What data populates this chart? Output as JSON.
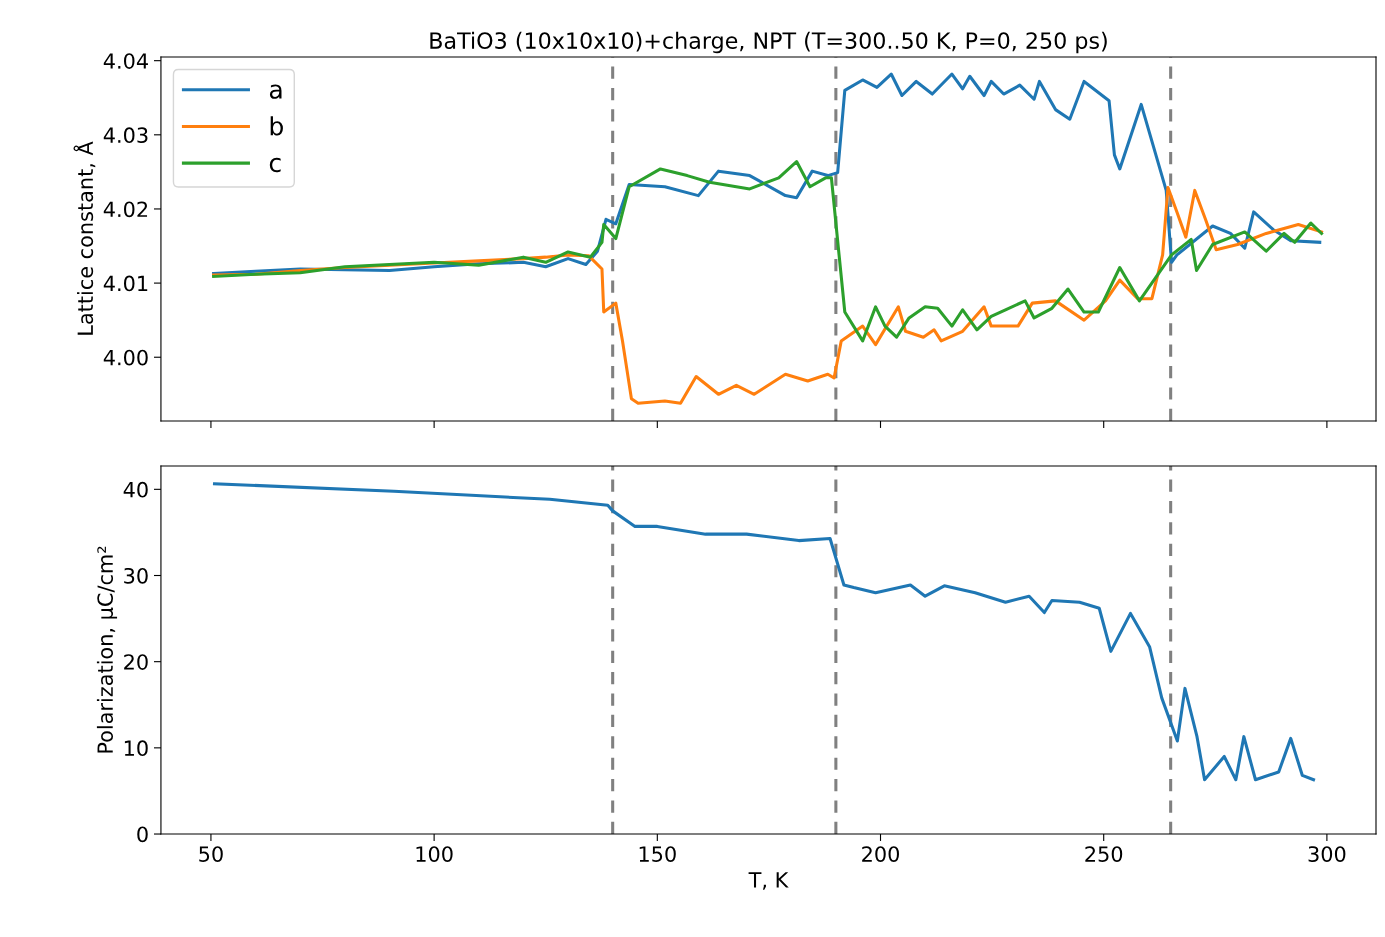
{
  "chart_data": [
    {
      "type": "line",
      "title": "BaTiO3 (10x10x10)+charge, NPT (T=300..50 K, P=0, 250 ps)",
      "ylabel": "Lattice constant, Å",
      "xlim": [
        38.8,
        311
      ],
      "xticks": [
        50,
        100,
        150,
        200,
        250,
        300
      ],
      "ylim": [
        3.9914,
        4.0405
      ],
      "yticks": [
        {
          "value": 4.0,
          "label": "4.00"
        },
        {
          "value": 4.01,
          "label": "4.01"
        },
        {
          "value": 4.02,
          "label": "4.02"
        },
        {
          "value": 4.03,
          "label": "4.03"
        },
        {
          "value": 4.04,
          "label": "4.04"
        }
      ],
      "tick_labels": "y",
      "legend": "top left",
      "grid": false,
      "line_style": "solid",
      "ref_lines": [
        {
          "axis": "x",
          "value": 140,
          "color": "#808080",
          "line_style": "dashed"
        },
        {
          "axis": "x",
          "value": 190,
          "color": "#808080",
          "line_style": "dashed"
        },
        {
          "axis": "x",
          "value": 265,
          "color": "#808080",
          "line_style": "dashed"
        }
      ],
      "series": [
        {
          "name": "a",
          "color": "#1f77b4",
          "x": [
            50.6,
            60,
            70,
            80,
            90,
            100,
            110,
            120,
            125,
            130,
            134,
            136.6,
            138.5,
            140.7,
            143.7,
            151.7,
            159.2,
            163.7,
            170.7,
            178.7,
            181.2,
            184.7,
            188.2,
            190.4,
            192,
            196,
            199.2,
            202.4,
            204.8,
            208,
            211.6,
            216,
            218.4,
            220,
            223.2,
            224.8,
            227.6,
            231.2,
            234.4,
            235.6,
            239.2,
            242.4,
            245.6,
            251.2,
            252.4,
            253.6,
            258.4,
            264,
            265.2,
            266.4,
            274.4,
            278.4,
            281.6,
            283.6,
            288,
            292,
            298.4
          ],
          "values": [
            4.0113,
            4.0116,
            4.0119,
            4.0118,
            4.0117,
            4.0122,
            4.0126,
            4.0128,
            4.0122,
            4.0133,
            4.0125,
            4.0143,
            4.0186,
            4.018,
            4.0233,
            4.023,
            4.0218,
            4.0251,
            4.0245,
            4.0218,
            4.0215,
            4.0251,
            4.0245,
            4.0249,
            4.036,
            4.0374,
            4.0364,
            4.0382,
            4.0353,
            4.0372,
            4.0355,
            4.0382,
            4.0362,
            4.0379,
            4.0353,
            4.0372,
            4.0355,
            4.0367,
            4.0348,
            4.0372,
            4.0334,
            4.0321,
            4.0372,
            4.0346,
            4.0273,
            4.0254,
            4.0341,
            4.0225,
            4.0128,
            4.0138,
            4.0177,
            4.0167,
            4.0147,
            4.0196,
            4.0172,
            4.0157,
            4.0155
          ]
        },
        {
          "name": "b",
          "color": "#ff7f0e",
          "x": [
            50.6,
            60,
            70,
            80,
            90,
            100,
            110,
            120,
            125,
            130,
            134.6,
            137.6,
            138,
            140.7,
            142.2,
            144.2,
            145.7,
            151.7,
            155.2,
            158.7,
            163.7,
            167.7,
            171.7,
            178.7,
            183.7,
            188.2,
            189.6,
            191.2,
            196,
            198.9,
            204,
            205.6,
            209.6,
            212,
            213.6,
            218.4,
            223.2,
            224.8,
            230.8,
            234,
            239.2,
            245.6,
            250.4,
            253.6,
            257.6,
            260.8,
            263.2,
            264.4,
            266.4,
            268.4,
            270.4,
            272.8,
            275.2,
            280,
            286.4,
            293.6,
            298.8
          ],
          "values": [
            4.0111,
            4.0112,
            4.0117,
            4.0121,
            4.0124,
            4.0127,
            4.013,
            4.0133,
            4.0135,
            4.0138,
            4.0137,
            4.0119,
            4.0061,
            4.0073,
            4.0022,
            3.9944,
            3.9938,
            3.9941,
            3.9938,
            3.9974,
            3.995,
            3.9962,
            3.995,
            3.9977,
            3.9968,
            3.9977,
            3.9972,
            4.0022,
            4.0042,
            4.0017,
            4.0068,
            4.0035,
            4.0027,
            4.0037,
            4.0022,
            4.0035,
            4.0068,
            4.0042,
            4.0042,
            4.0073,
            4.0076,
            4.005,
            4.0076,
            4.0104,
            4.0079,
            4.0079,
            4.0138,
            4.0229,
            4.0196,
            4.0162,
            4.0225,
            4.0186,
            4.0145,
            4.0152,
            4.0167,
            4.0179,
            4.0169
          ]
        },
        {
          "name": "c",
          "color": "#2ca02c",
          "x": [
            50.6,
            60,
            70,
            80,
            90,
            100,
            110,
            120,
            125,
            130,
            135,
            137.6,
            138,
            140.7,
            143.7,
            150.7,
            156.7,
            161.7,
            170.7,
            177.2,
            181.2,
            184.2,
            187.7,
            189,
            190.4,
            192,
            196,
            198.9,
            201,
            203.6,
            206.4,
            210,
            212.8,
            216,
            218.4,
            221.6,
            224.8,
            228,
            232.4,
            234.4,
            238.4,
            242,
            245.6,
            248.8,
            253.6,
            258,
            261.6,
            265.2,
            269.6,
            270.8,
            274.4,
            281.6,
            286.4,
            290.4,
            292.8,
            296.4,
            298.8
          ],
          "values": [
            4.0109,
            4.0112,
            4.0114,
            4.0122,
            4.0125,
            4.0128,
            4.0124,
            4.0135,
            4.0128,
            4.0142,
            4.0135,
            4.0155,
            4.0179,
            4.016,
            4.023,
            4.0254,
            4.0245,
            4.0236,
            4.0227,
            4.0242,
            4.0264,
            4.023,
            4.0242,
            4.0242,
            4.0157,
            4.0061,
            4.0022,
            4.0068,
            4.0042,
            4.0027,
            4.0053,
            4.0068,
            4.0066,
            4.0042,
            4.0064,
            4.0037,
            4.0055,
            4.0064,
            4.0076,
            4.0053,
            4.0066,
            4.0092,
            4.0061,
            4.0061,
            4.0121,
            4.0076,
            4.0107,
            4.0138,
            4.0159,
            4.0117,
            4.0152,
            4.0169,
            4.0143,
            4.0167,
            4.0155,
            4.0181,
            4.0167
          ]
        }
      ]
    },
    {
      "type": "line",
      "xlabel": "T, K",
      "ylabel": "Polarization, μC/cm²",
      "xlim": [
        38.8,
        311
      ],
      "xticks": [
        50,
        100,
        150,
        200,
        250,
        300
      ],
      "ylim": [
        0,
        42.7
      ],
      "yticks": [
        0,
        10,
        20,
        30,
        40
      ],
      "grid": false,
      "line_style": "solid",
      "ref_lines": [
        {
          "axis": "x",
          "value": 140,
          "color": "#808080",
          "line_style": "dashed"
        },
        {
          "axis": "x",
          "value": 190,
          "color": "#808080",
          "line_style": "dashed"
        },
        {
          "axis": "x",
          "value": 265,
          "color": "#808080",
          "line_style": "dashed"
        }
      ],
      "series": [
        {
          "color": "#1f77b4",
          "x": [
            50.8,
            91,
            125.9,
            138.9,
            140,
            145,
            150,
            160.8,
            170,
            181.7,
            188.7,
            189.5,
            191.8,
            194,
            198.9,
            206.7,
            210,
            214.3,
            221.2,
            228,
            233.3,
            236.7,
            238.4,
            244.6,
            249,
            251.6,
            256,
            260.3,
            263,
            266.5,
            268.2,
            270.9,
            272.6,
            277,
            279.6,
            281.4,
            284,
            289.2,
            291.9,
            294.5,
            297
          ],
          "values": [
            40.65,
            39.77,
            38.84,
            38.15,
            37.5,
            35.7,
            35.7,
            34.8,
            34.8,
            34.05,
            34.3,
            32.9,
            28.9,
            28.6,
            28.0,
            28.9,
            27.6,
            28.8,
            28.0,
            26.9,
            27.6,
            25.7,
            27.1,
            26.9,
            26.2,
            21.2,
            25.6,
            21.7,
            15.8,
            10.8,
            16.9,
            11.3,
            6.3,
            9.0,
            6.3,
            11.3,
            6.3,
            7.2,
            11.1,
            6.8,
            6.3
          ]
        }
      ]
    }
  ]
}
